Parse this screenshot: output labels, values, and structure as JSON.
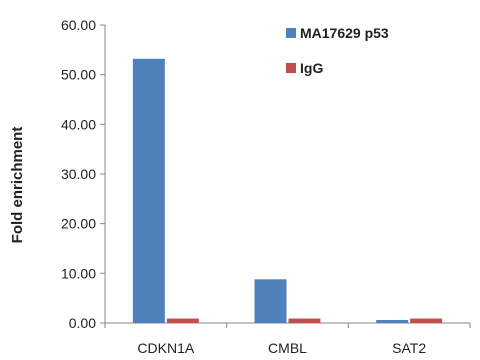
{
  "chart_data": {
    "type": "bar",
    "title": "",
    "xlabel": "",
    "ylabel": "Fold enrichment",
    "ylim": [
      0,
      60
    ],
    "yticks": [
      "0.00",
      "10.00",
      "20.00",
      "30.00",
      "40.00",
      "50.00",
      "60.00"
    ],
    "categories": [
      "CDKN1A",
      "CMBL",
      "SAT2"
    ],
    "series": [
      {
        "name": "MA17629 p53",
        "color": "#4f81bd",
        "values": [
          53.2,
          8.8,
          0.6
        ]
      },
      {
        "name": "IgG",
        "color": "#c0504d",
        "values": [
          0.9,
          0.9,
          0.9
        ]
      }
    ],
    "legend_position": "top-right",
    "grid": false
  }
}
